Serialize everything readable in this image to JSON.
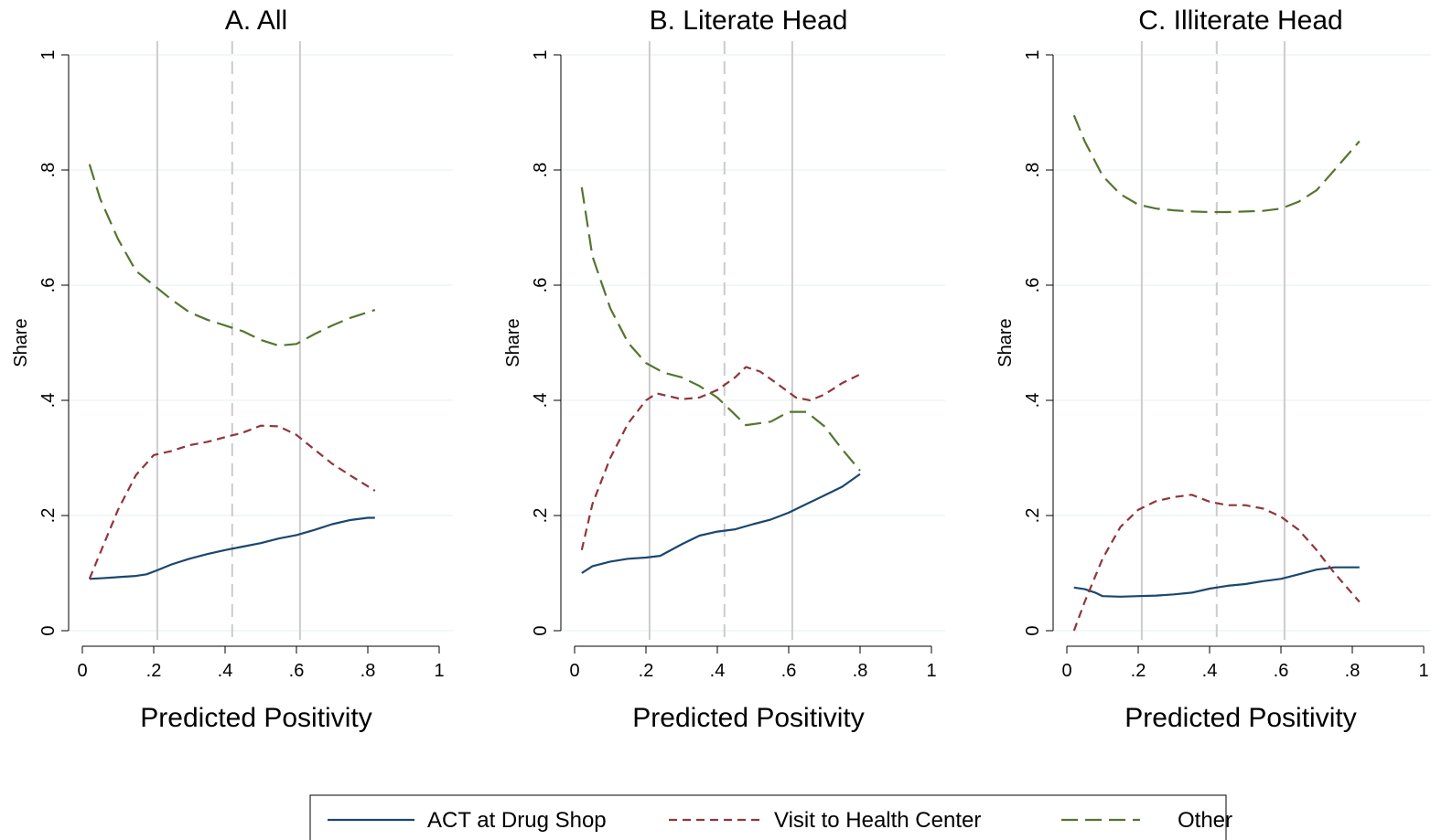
{
  "chart_data": [
    {
      "type": "line",
      "title": "A. All",
      "xlabel": "Predicted Positivity",
      "ylabel": "Share",
      "xlim": [
        0,
        1
      ],
      "ylim": [
        0,
        1
      ],
      "x_tick_labels": [
        "0",
        ".2",
        ".4",
        ".6",
        ".8",
        "1"
      ],
      "y_tick_labels": [
        "0",
        ".2",
        ".4",
        ".6",
        ".8",
        "1"
      ],
      "reference_lines": {
        "solid": [
          0.21,
          0.61
        ],
        "dashed": [
          0.42
        ]
      },
      "grid": true,
      "series": [
        {
          "name": "ACT at Drug Shop",
          "points": [
            [
              0.02,
              0.09
            ],
            [
              0.05,
              0.091
            ],
            [
              0.1,
              0.093
            ],
            [
              0.15,
              0.095
            ],
            [
              0.18,
              0.098
            ],
            [
              0.21,
              0.105
            ],
            [
              0.25,
              0.115
            ],
            [
              0.3,
              0.125
            ],
            [
              0.35,
              0.133
            ],
            [
              0.4,
              0.14
            ],
            [
              0.45,
              0.146
            ],
            [
              0.5,
              0.152
            ],
            [
              0.55,
              0.16
            ],
            [
              0.6,
              0.166
            ],
            [
              0.65,
              0.175
            ],
            [
              0.7,
              0.185
            ],
            [
              0.75,
              0.192
            ],
            [
              0.8,
              0.196
            ],
            [
              0.82,
              0.196
            ]
          ]
        },
        {
          "name": "Visit to Health Center",
          "points": [
            [
              0.02,
              0.09
            ],
            [
              0.06,
              0.15
            ],
            [
              0.1,
              0.21
            ],
            [
              0.15,
              0.27
            ],
            [
              0.2,
              0.305
            ],
            [
              0.25,
              0.312
            ],
            [
              0.3,
              0.322
            ],
            [
              0.35,
              0.328
            ],
            [
              0.4,
              0.336
            ],
            [
              0.45,
              0.344
            ],
            [
              0.5,
              0.356
            ],
            [
              0.55,
              0.355
            ],
            [
              0.6,
              0.34
            ],
            [
              0.65,
              0.315
            ],
            [
              0.7,
              0.29
            ],
            [
              0.75,
              0.27
            ],
            [
              0.82,
              0.243
            ]
          ]
        },
        {
          "name": "Other",
          "points": [
            [
              0.02,
              0.81
            ],
            [
              0.05,
              0.75
            ],
            [
              0.1,
              0.68
            ],
            [
              0.15,
              0.625
            ],
            [
              0.2,
              0.6
            ],
            [
              0.25,
              0.575
            ],
            [
              0.3,
              0.553
            ],
            [
              0.35,
              0.54
            ],
            [
              0.4,
              0.53
            ],
            [
              0.45,
              0.52
            ],
            [
              0.5,
              0.505
            ],
            [
              0.55,
              0.495
            ],
            [
              0.6,
              0.498
            ],
            [
              0.65,
              0.515
            ],
            [
              0.7,
              0.53
            ],
            [
              0.75,
              0.543
            ],
            [
              0.82,
              0.557
            ]
          ]
        }
      ]
    },
    {
      "type": "line",
      "title": "B. Literate Head",
      "xlabel": "Predicted Positivity",
      "ylabel": "Share",
      "xlim": [
        0,
        1
      ],
      "ylim": [
        0,
        1
      ],
      "x_tick_labels": [
        "0",
        ".2",
        ".4",
        ".6",
        ".8",
        "1"
      ],
      "y_tick_labels": [
        "0",
        ".2",
        ".4",
        ".6",
        ".8",
        "1"
      ],
      "reference_lines": {
        "solid": [
          0.21,
          0.61
        ],
        "dashed": [
          0.42
        ]
      },
      "grid": true,
      "series": [
        {
          "name": "ACT at Drug Shop",
          "points": [
            [
              0.02,
              0.1
            ],
            [
              0.05,
              0.112
            ],
            [
              0.1,
              0.12
            ],
            [
              0.15,
              0.125
            ],
            [
              0.2,
              0.127
            ],
            [
              0.24,
              0.13
            ],
            [
              0.3,
              0.15
            ],
            [
              0.35,
              0.165
            ],
            [
              0.4,
              0.172
            ],
            [
              0.45,
              0.176
            ],
            [
              0.5,
              0.185
            ],
            [
              0.55,
              0.193
            ],
            [
              0.6,
              0.205
            ],
            [
              0.65,
              0.22
            ],
            [
              0.7,
              0.235
            ],
            [
              0.75,
              0.25
            ],
            [
              0.8,
              0.272
            ]
          ]
        },
        {
          "name": "Visit to Health Center",
          "points": [
            [
              0.02,
              0.14
            ],
            [
              0.05,
              0.22
            ],
            [
              0.1,
              0.3
            ],
            [
              0.15,
              0.36
            ],
            [
              0.2,
              0.4
            ],
            [
              0.23,
              0.412
            ],
            [
              0.3,
              0.402
            ],
            [
              0.35,
              0.405
            ],
            [
              0.4,
              0.418
            ],
            [
              0.45,
              0.44
            ],
            [
              0.48,
              0.458
            ],
            [
              0.52,
              0.45
            ],
            [
              0.57,
              0.428
            ],
            [
              0.62,
              0.405
            ],
            [
              0.66,
              0.4
            ],
            [
              0.7,
              0.41
            ],
            [
              0.75,
              0.43
            ],
            [
              0.8,
              0.445
            ]
          ]
        },
        {
          "name": "Other",
          "points": [
            [
              0.02,
              0.77
            ],
            [
              0.05,
              0.65
            ],
            [
              0.1,
              0.56
            ],
            [
              0.15,
              0.5
            ],
            [
              0.2,
              0.465
            ],
            [
              0.25,
              0.448
            ],
            [
              0.3,
              0.44
            ],
            [
              0.35,
              0.425
            ],
            [
              0.4,
              0.405
            ],
            [
              0.45,
              0.375
            ],
            [
              0.48,
              0.357
            ],
            [
              0.55,
              0.363
            ],
            [
              0.6,
              0.38
            ],
            [
              0.65,
              0.38
            ],
            [
              0.7,
              0.355
            ],
            [
              0.75,
              0.315
            ],
            [
              0.8,
              0.278
            ]
          ]
        }
      ]
    },
    {
      "type": "line",
      "title": "C. Illiterate Head",
      "xlabel": "Predicted Positivity",
      "ylabel": "Share",
      "xlim": [
        0,
        1
      ],
      "ylim": [
        0,
        1
      ],
      "x_tick_labels": [
        "0",
        ".2",
        ".4",
        ".6",
        ".8",
        "1"
      ],
      "y_tick_labels": [
        "0",
        ".2",
        ".4",
        ".6",
        ".8",
        "1"
      ],
      "reference_lines": {
        "solid": [
          0.21,
          0.61
        ],
        "dashed": [
          0.42
        ]
      },
      "grid": true,
      "series": [
        {
          "name": "ACT at Drug Shop",
          "points": [
            [
              0.02,
              0.075
            ],
            [
              0.05,
              0.072
            ],
            [
              0.08,
              0.066
            ],
            [
              0.1,
              0.06
            ],
            [
              0.15,
              0.059
            ],
            [
              0.2,
              0.06
            ],
            [
              0.25,
              0.061
            ],
            [
              0.3,
              0.063
            ],
            [
              0.35,
              0.066
            ],
            [
              0.4,
              0.073
            ],
            [
              0.45,
              0.078
            ],
            [
              0.5,
              0.081
            ],
            [
              0.55,
              0.086
            ],
            [
              0.6,
              0.09
            ],
            [
              0.65,
              0.098
            ],
            [
              0.7,
              0.106
            ],
            [
              0.75,
              0.11
            ],
            [
              0.82,
              0.11
            ]
          ]
        },
        {
          "name": "Visit to Health Center",
          "points": [
            [
              0.02,
              0.0
            ],
            [
              0.05,
              0.05
            ],
            [
              0.1,
              0.125
            ],
            [
              0.15,
              0.18
            ],
            [
              0.2,
              0.21
            ],
            [
              0.25,
              0.225
            ],
            [
              0.3,
              0.232
            ],
            [
              0.35,
              0.236
            ],
            [
              0.4,
              0.224
            ],
            [
              0.45,
              0.218
            ],
            [
              0.5,
              0.218
            ],
            [
              0.55,
              0.212
            ],
            [
              0.6,
              0.198
            ],
            [
              0.65,
              0.175
            ],
            [
              0.7,
              0.14
            ],
            [
              0.75,
              0.1
            ],
            [
              0.82,
              0.05
            ]
          ]
        },
        {
          "name": "Other",
          "points": [
            [
              0.02,
              0.895
            ],
            [
              0.05,
              0.85
            ],
            [
              0.1,
              0.79
            ],
            [
              0.15,
              0.758
            ],
            [
              0.2,
              0.74
            ],
            [
              0.25,
              0.733
            ],
            [
              0.3,
              0.73
            ],
            [
              0.35,
              0.728
            ],
            [
              0.4,
              0.727
            ],
            [
              0.45,
              0.727
            ],
            [
              0.5,
              0.728
            ],
            [
              0.55,
              0.729
            ],
            [
              0.6,
              0.733
            ],
            [
              0.65,
              0.745
            ],
            [
              0.7,
              0.765
            ],
            [
              0.75,
              0.8
            ],
            [
              0.82,
              0.85
            ]
          ]
        }
      ]
    }
  ],
  "legend": {
    "placement": "bottom",
    "items": [
      {
        "label": "ACT at Drug Shop",
        "color": "#1a476f",
        "style": "solid"
      },
      {
        "label": "Visit to Health Center",
        "color": "#90353b",
        "style": "dashed"
      },
      {
        "label": "Other",
        "color": "#55752f",
        "style": "longdash"
      }
    ]
  },
  "colors": {
    "act": "#1a476f",
    "visit": "#90353b",
    "other": "#55752f",
    "refline": "#cccccc",
    "grid": "#eaf2f3"
  }
}
